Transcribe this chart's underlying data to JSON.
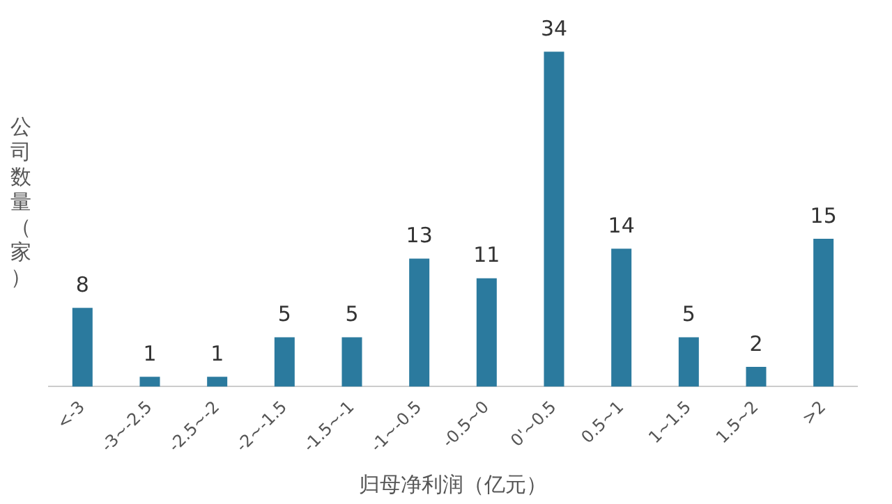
{
  "chart_data": {
    "type": "bar",
    "xlabel": "归母净利润（亿元）",
    "ylabel": "公司数量（家）",
    "categories": [
      "<-3",
      "-3~-2.5",
      "-2.5~-2",
      "-2~-1.5",
      "-1.5~-1",
      "-1~-0.5",
      "-0.5~0",
      "0'~0.5",
      "0.5~1",
      "1~1.5",
      "1.5~2",
      ">2"
    ],
    "values": [
      8,
      1,
      1,
      5,
      5,
      13,
      11,
      34,
      14,
      5,
      2,
      15
    ],
    "color": "#2b7a9e",
    "data_labels": true,
    "grid": false,
    "legend": false
  }
}
